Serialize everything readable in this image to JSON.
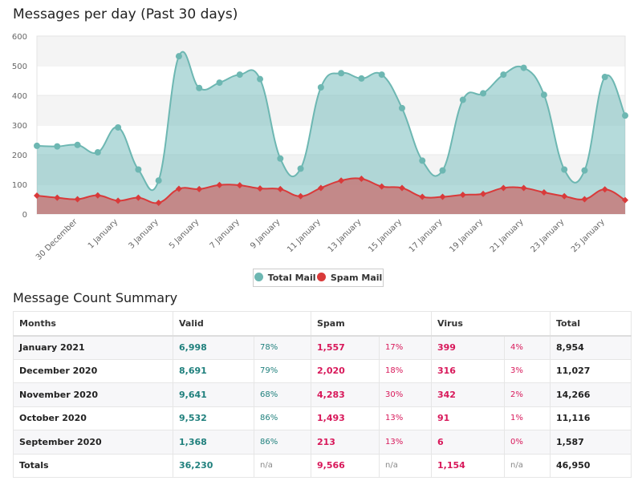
{
  "chart_data": {
    "type": "area",
    "title": "Messages per day (Past 30 days)",
    "xlabel": "",
    "ylabel": "",
    "ylim": [
      0,
      600
    ],
    "yticks": [
      "0",
      "100",
      "200",
      "300",
      "400",
      "500",
      "600"
    ],
    "x_tick_labels": [
      "30 December",
      "1 January",
      "3 January",
      "5 January",
      "7 January",
      "9 January",
      "11 January",
      "13 January",
      "15 January",
      "17 January",
      "19 January",
      "21 January",
      "23 January",
      "25 January"
    ],
    "series": [
      {
        "name": "Total Mail",
        "color": "#6db7b2",
        "values": [
          230,
          228,
          233,
          208,
          292,
          150,
          113,
          532,
          425,
          443,
          470,
          455,
          187,
          153,
          427,
          475,
          457,
          470,
          357,
          180,
          147,
          385,
          407,
          470,
          493,
          402,
          150,
          147,
          462,
          332
        ]
      },
      {
        "name": "Spam Mail",
        "color": "#d93a3a",
        "values": [
          62,
          55,
          50,
          63,
          45,
          55,
          38,
          85,
          84,
          98,
          97,
          86,
          84,
          60,
          88,
          113,
          119,
          93,
          88,
          58,
          58,
          65,
          68,
          88,
          88,
          73,
          60,
          50,
          83,
          47
        ]
      }
    ],
    "legend": "bottom-center"
  },
  "summary": {
    "title": "Message Count Summary",
    "headers": [
      "Months",
      "Valid",
      "Spam",
      "Virus",
      "Total"
    ],
    "rows": [
      [
        "January 2021",
        "6,998",
        "78%",
        "1,557",
        "17%",
        "399",
        "4%",
        "8,954"
      ],
      [
        "December 2020",
        "8,691",
        "79%",
        "2,020",
        "18%",
        "316",
        "3%",
        "11,027"
      ],
      [
        "November 2020",
        "9,641",
        "68%",
        "4,283",
        "30%",
        "342",
        "2%",
        "14,266"
      ],
      [
        "October 2020",
        "9,532",
        "86%",
        "1,493",
        "13%",
        "91",
        "1%",
        "11,116"
      ],
      [
        "September 2020",
        "1,368",
        "86%",
        "213",
        "13%",
        "6",
        "0%",
        "1,587"
      ],
      [
        "Totals",
        "36,230",
        "n/a",
        "9,566",
        "n/a",
        "1,154",
        "n/a",
        "46,950"
      ]
    ]
  }
}
